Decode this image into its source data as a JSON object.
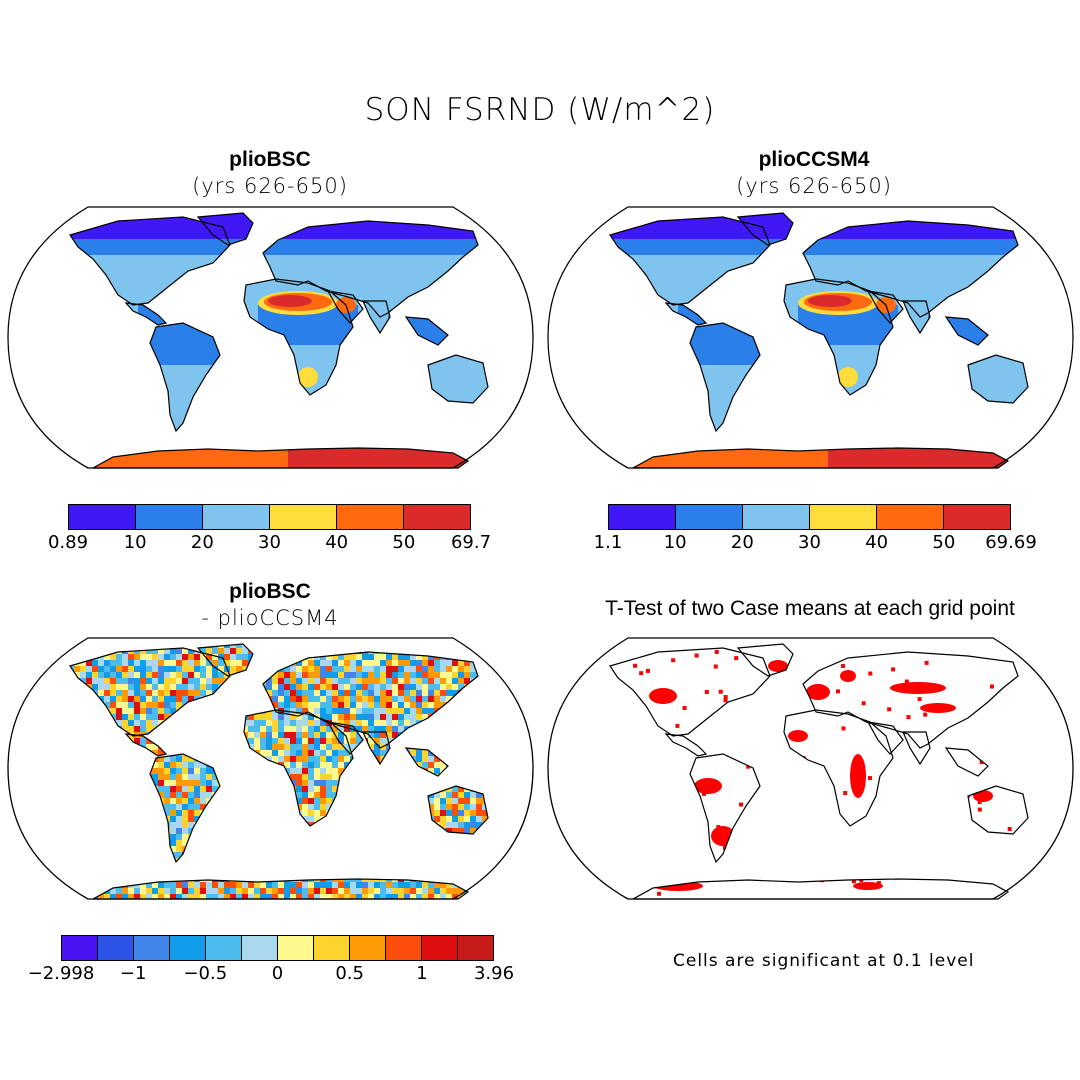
{
  "figure": {
    "title": "SON FSRND (W/m^2)"
  },
  "panels": {
    "bsc": {
      "title": "plioBSC",
      "subtitle": "(yrs 626-650)"
    },
    "ccsm4": {
      "title": "plioCCSM4",
      "subtitle": "(yrs 626-650)"
    },
    "diff": {
      "title": "plioBSC",
      "subtitle": "- plioCCSM4"
    },
    "ttest": {
      "title": "T-Test of two Case means at each grid point",
      "note": "Cells are significant at 0.1 level"
    }
  },
  "colorbars": {
    "bsc": {
      "colors": [
        "#4017f5",
        "#2a7fe8",
        "#7ec4ef",
        "#ffdd3c",
        "#ff6a10",
        "#d92b2b"
      ],
      "labels": [
        "0.89",
        "10",
        "20",
        "30",
        "40",
        "50",
        "69.7"
      ]
    },
    "ccsm4": {
      "colors": [
        "#4017f5",
        "#2a7fe8",
        "#7ec4ef",
        "#ffdd3c",
        "#ff6a10",
        "#d92b2b"
      ],
      "labels": [
        "1.1",
        "10",
        "20",
        "30",
        "40",
        "50",
        "69.69"
      ]
    },
    "diff": {
      "colors": [
        "#4a14f2",
        "#2c52e6",
        "#3f86e8",
        "#109ce8",
        "#4cbcec",
        "#a9d8ee",
        "#fdf98f",
        "#fdd330",
        "#fd9b06",
        "#fc4d0a",
        "#e00f0f",
        "#c81c1c"
      ],
      "labels": [
        "-2.998",
        "-1",
        "-0.5",
        "0",
        "0.5",
        "1",
        "3.96"
      ]
    }
  },
  "legend_colors": {
    "significant": "#ff0000",
    "land_outline": "#000000"
  }
}
